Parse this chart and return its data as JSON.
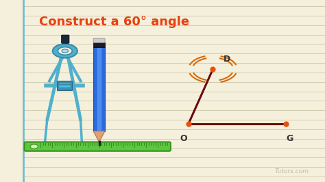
{
  "title": "Construct a 60° angle",
  "title_color": "#e84010",
  "title_fontsize": 13,
  "bg_color": "#f5f0dc",
  "notebook_line_color": "#d0ccb0",
  "left_margin_color": "#70bdd0",
  "angle_line_color": "#6b0a0a",
  "angle_dot_color": "#e85010",
  "arc_color": "#d46a0a",
  "label_color": "#333333",
  "watermark": "Tutors.com",
  "watermark_color": "#c0bba0",
  "ruler_color": "#5cc840",
  "ruler_dark": "#3a9020",
  "compass_color": "#50b0cc",
  "compass_dark": "#3a8aaa",
  "pencil_body": "#2a6adc",
  "pencil_highlight": "#6aaaff",
  "pencil_tip": "#e0a070",
  "pencil_dark": "#222222",
  "point_O": [
    0.58,
    0.32
  ],
  "point_G": [
    0.88,
    0.32
  ],
  "point_D": [
    0.655,
    0.62
  ],
  "label_O": "O",
  "label_G": "G",
  "label_D": "D"
}
